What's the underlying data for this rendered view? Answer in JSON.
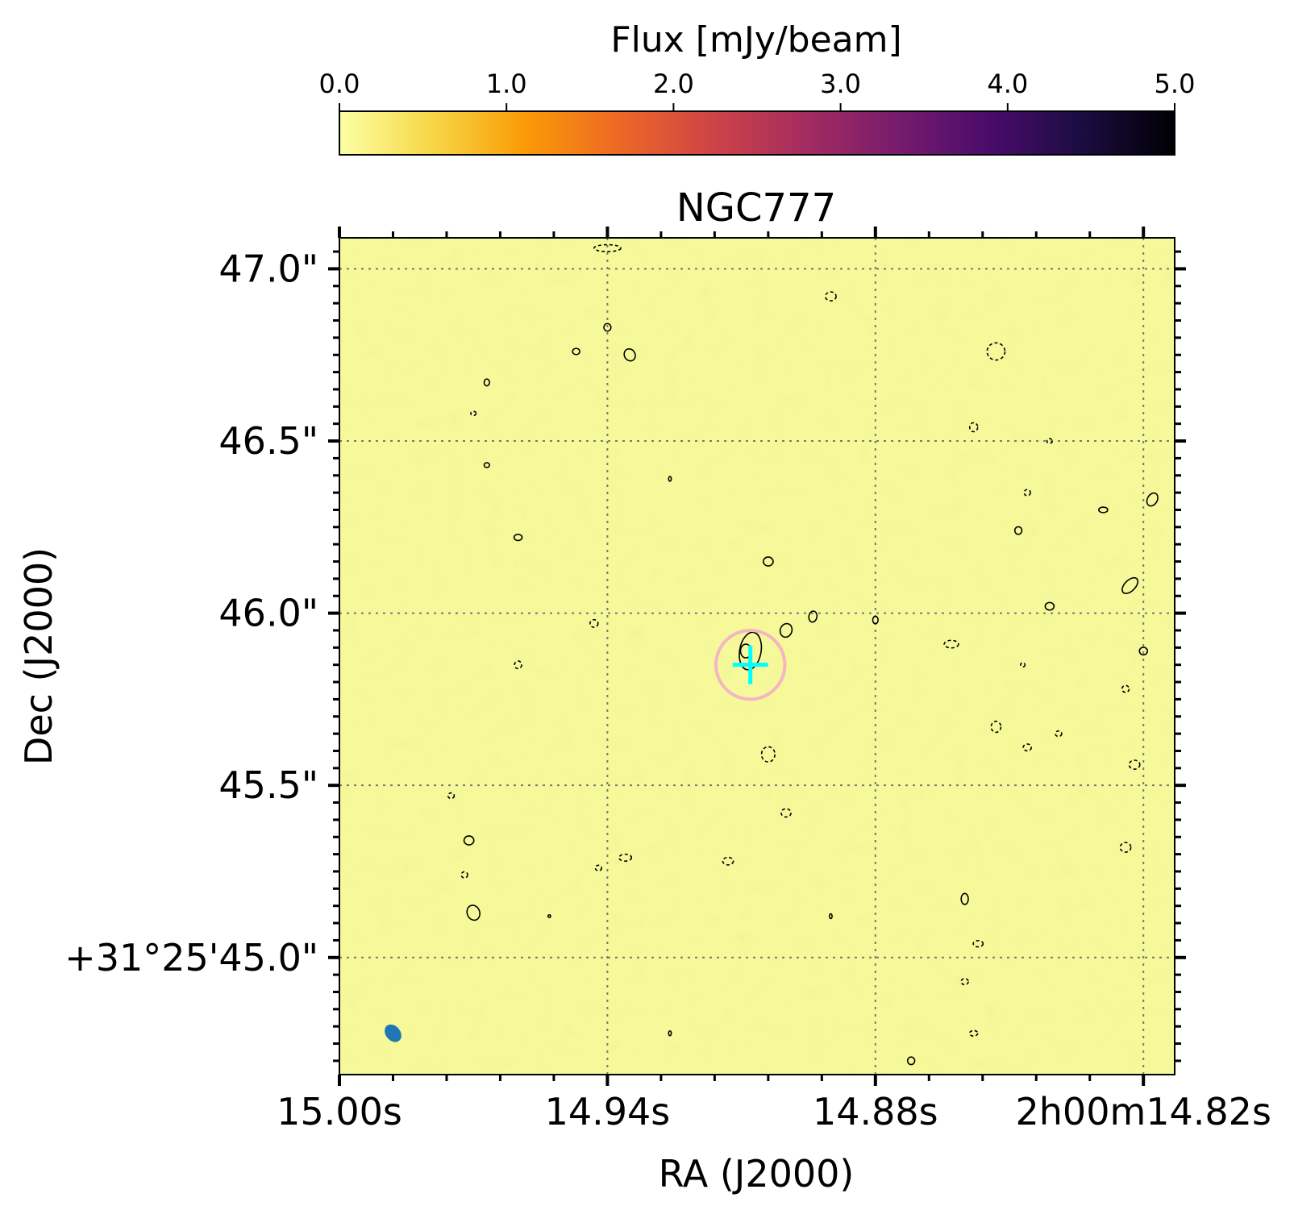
{
  "chart_data": {
    "type": "image",
    "title": "NGC777",
    "xlabel": "RA (J2000)",
    "ylabel": "Dec (J2000)",
    "colorbar": {
      "label": "Flux [mJy/beam]",
      "range": [
        0.0,
        5.0
      ],
      "ticks": [
        "0.0",
        "1.0",
        "2.0",
        "3.0",
        "4.0",
        "5.0"
      ],
      "colormap": "inferno_r",
      "stops": [
        "#fcffa4",
        "#f6d746",
        "#fb9b06",
        "#ed6925",
        "#cf4446",
        "#a52c60",
        "#781c6d",
        "#4a0c6b",
        "#1b0c41",
        "#000004"
      ]
    },
    "x_axis": {
      "ticks": [
        "15.00s",
        "14.94s",
        "14.88s",
        "2h00m14.82s"
      ],
      "tick_values_s": [
        15.0,
        14.94,
        14.88,
        14.82
      ],
      "range_s": [
        15.0,
        14.813
      ]
    },
    "y_axis": {
      "ticks": [
        "47.0\"",
        "46.5\"",
        "46.0\"",
        "45.5\"",
        "+31°25'45.0\""
      ],
      "tick_values_arcsec": [
        47.0,
        46.5,
        46.0,
        45.5,
        45.0
      ],
      "range_arcsec": [
        44.66,
        47.09
      ]
    },
    "source": {
      "ra_s": 14.908,
      "dec_arcsec": 45.85,
      "marker": "cross",
      "marker_color": "#00ffff",
      "circle_color": "#f4b6c2",
      "circle_radius_arcsec": 0.1
    },
    "beam": {
      "ra_s": 14.988,
      "dec_arcsec": 44.78,
      "color": "#1f77b4"
    },
    "background_color": "#f6f99a",
    "grid": "dotted",
    "contours": [
      {
        "ra": 14.94,
        "dec": 47.06,
        "rx": 0.003,
        "ry": 0.01,
        "a": 0,
        "solid": false
      },
      {
        "ra": 14.89,
        "dec": 46.92,
        "rx": 0.0012,
        "ry": 0.013,
        "a": 0,
        "solid": false
      },
      {
        "ra": 14.94,
        "dec": 46.83,
        "rx": 0.0008,
        "ry": 0.011,
        "a": 0,
        "solid": true
      },
      {
        "ra": 14.947,
        "dec": 46.76,
        "rx": 0.0008,
        "ry": 0.009,
        "a": 0,
        "solid": true
      },
      {
        "ra": 14.935,
        "dec": 46.75,
        "rx": 0.0012,
        "ry": 0.018,
        "a": -30,
        "solid": true
      },
      {
        "ra": 14.967,
        "dec": 46.67,
        "rx": 0.0006,
        "ry": 0.01,
        "a": 0,
        "solid": true
      },
      {
        "ra": 14.97,
        "dec": 46.58,
        "rx": 0.0006,
        "ry": 0.006,
        "a": 0,
        "solid": false
      },
      {
        "ra": 14.967,
        "dec": 46.43,
        "rx": 0.0006,
        "ry": 0.007,
        "a": 0,
        "solid": true
      },
      {
        "ra": 14.926,
        "dec": 46.39,
        "rx": 0.0003,
        "ry": 0.007,
        "a": 0,
        "solid": true
      },
      {
        "ra": 14.96,
        "dec": 46.22,
        "rx": 0.0009,
        "ry": 0.009,
        "a": 0,
        "solid": true
      },
      {
        "ra": 14.904,
        "dec": 46.15,
        "rx": 0.0011,
        "ry": 0.013,
        "a": 0,
        "solid": true
      },
      {
        "ra": 14.943,
        "dec": 45.97,
        "rx": 0.0009,
        "ry": 0.011,
        "a": 0,
        "solid": false
      },
      {
        "ra": 14.9,
        "dec": 45.95,
        "rx": 0.0013,
        "ry": 0.02,
        "a": 20,
        "solid": true
      },
      {
        "ra": 14.894,
        "dec": 45.99,
        "rx": 0.0009,
        "ry": 0.016,
        "a": 10,
        "solid": true
      },
      {
        "ra": 14.88,
        "dec": 45.98,
        "rx": 0.0006,
        "ry": 0.011,
        "a": 0,
        "solid": true
      },
      {
        "ra": 14.96,
        "dec": 45.85,
        "rx": 0.0008,
        "ry": 0.011,
        "a": 0,
        "solid": false
      },
      {
        "ra": 14.909,
        "dec": 45.89,
        "rx": 0.0012,
        "ry": 0.02,
        "a": 0,
        "solid": true
      },
      {
        "ra": 14.908,
        "dec": 45.89,
        "rx": 0.0024,
        "ry": 0.055,
        "a": 10,
        "solid": true
      },
      {
        "ra": 14.904,
        "dec": 45.59,
        "rx": 0.0015,
        "ry": 0.022,
        "a": 0,
        "solid": false
      },
      {
        "ra": 14.975,
        "dec": 45.47,
        "rx": 0.0007,
        "ry": 0.008,
        "a": 0,
        "solid": false
      },
      {
        "ra": 14.9,
        "dec": 45.42,
        "rx": 0.0011,
        "ry": 0.012,
        "a": 0,
        "solid": false
      },
      {
        "ra": 14.971,
        "dec": 45.34,
        "rx": 0.0011,
        "ry": 0.013,
        "a": 0,
        "solid": true
      },
      {
        "ra": 14.936,
        "dec": 45.29,
        "rx": 0.0014,
        "ry": 0.01,
        "a": 0,
        "solid": false
      },
      {
        "ra": 14.913,
        "dec": 45.28,
        "rx": 0.0012,
        "ry": 0.011,
        "a": 0,
        "solid": false
      },
      {
        "ra": 14.942,
        "dec": 45.26,
        "rx": 0.0007,
        "ry": 0.008,
        "a": 0,
        "solid": false
      },
      {
        "ra": 14.972,
        "dec": 45.24,
        "rx": 0.0007,
        "ry": 0.009,
        "a": 0,
        "solid": false
      },
      {
        "ra": 14.97,
        "dec": 45.13,
        "rx": 0.0014,
        "ry": 0.022,
        "a": -20,
        "solid": true
      },
      {
        "ra": 14.953,
        "dec": 45.12,
        "rx": 0.0003,
        "ry": 0.004,
        "a": 0,
        "solid": true
      },
      {
        "ra": 14.89,
        "dec": 45.12,
        "rx": 0.0003,
        "ry": 0.007,
        "a": 0,
        "solid": true
      },
      {
        "ra": 14.926,
        "dec": 44.78,
        "rx": 0.0003,
        "ry": 0.007,
        "a": 0,
        "solid": true
      },
      {
        "ra": 14.872,
        "dec": 44.7,
        "rx": 0.0008,
        "ry": 0.011,
        "a": 0,
        "solid": true
      },
      {
        "ra": 14.858,
        "dec": 44.78,
        "rx": 0.0009,
        "ry": 0.008,
        "a": 0,
        "solid": false
      },
      {
        "ra": 14.86,
        "dec": 44.93,
        "rx": 0.0008,
        "ry": 0.009,
        "a": 0,
        "solid": false
      },
      {
        "ra": 14.857,
        "dec": 45.04,
        "rx": 0.0011,
        "ry": 0.009,
        "a": 0,
        "solid": false
      },
      {
        "ra": 14.86,
        "dec": 45.17,
        "rx": 0.0008,
        "ry": 0.016,
        "a": 0,
        "solid": true
      },
      {
        "ra": 14.853,
        "dec": 46.76,
        "rx": 0.002,
        "ry": 0.025,
        "a": 0,
        "solid": false
      },
      {
        "ra": 14.858,
        "dec": 46.54,
        "rx": 0.0009,
        "ry": 0.013,
        "a": 0,
        "solid": false
      },
      {
        "ra": 14.841,
        "dec": 46.5,
        "rx": 0.0006,
        "ry": 0.007,
        "a": 0,
        "solid": false
      },
      {
        "ra": 14.846,
        "dec": 46.35,
        "rx": 0.0007,
        "ry": 0.009,
        "a": 0,
        "solid": false
      },
      {
        "ra": 14.829,
        "dec": 46.3,
        "rx": 0.001,
        "ry": 0.008,
        "a": 0,
        "solid": true
      },
      {
        "ra": 14.818,
        "dec": 46.33,
        "rx": 0.0011,
        "ry": 0.02,
        "a": 30,
        "solid": true
      },
      {
        "ra": 14.848,
        "dec": 46.24,
        "rx": 0.0008,
        "ry": 0.011,
        "a": 0,
        "solid": true
      },
      {
        "ra": 14.823,
        "dec": 46.08,
        "rx": 0.0012,
        "ry": 0.028,
        "a": 45,
        "solid": true
      },
      {
        "ra": 14.841,
        "dec": 46.02,
        "rx": 0.001,
        "ry": 0.011,
        "a": 0,
        "solid": true
      },
      {
        "ra": 14.863,
        "dec": 45.91,
        "rx": 0.0016,
        "ry": 0.011,
        "a": 0,
        "solid": false
      },
      {
        "ra": 14.847,
        "dec": 45.85,
        "rx": 0.0005,
        "ry": 0.006,
        "a": 0,
        "solid": false
      },
      {
        "ra": 14.82,
        "dec": 45.89,
        "rx": 0.0009,
        "ry": 0.011,
        "a": 0,
        "solid": true
      },
      {
        "ra": 14.824,
        "dec": 45.78,
        "rx": 0.0008,
        "ry": 0.01,
        "a": 0,
        "solid": false
      },
      {
        "ra": 14.853,
        "dec": 45.67,
        "rx": 0.0011,
        "ry": 0.016,
        "a": 0,
        "solid": false
      },
      {
        "ra": 14.846,
        "dec": 45.61,
        "rx": 0.0009,
        "ry": 0.01,
        "a": 0,
        "solid": false
      },
      {
        "ra": 14.839,
        "dec": 45.65,
        "rx": 0.0007,
        "ry": 0.008,
        "a": 0,
        "solid": false
      },
      {
        "ra": 14.822,
        "dec": 45.56,
        "rx": 0.0012,
        "ry": 0.013,
        "a": 0,
        "solid": false
      },
      {
        "ra": 14.824,
        "dec": 45.32,
        "rx": 0.0012,
        "ry": 0.014,
        "a": 0,
        "solid": false
      }
    ]
  }
}
